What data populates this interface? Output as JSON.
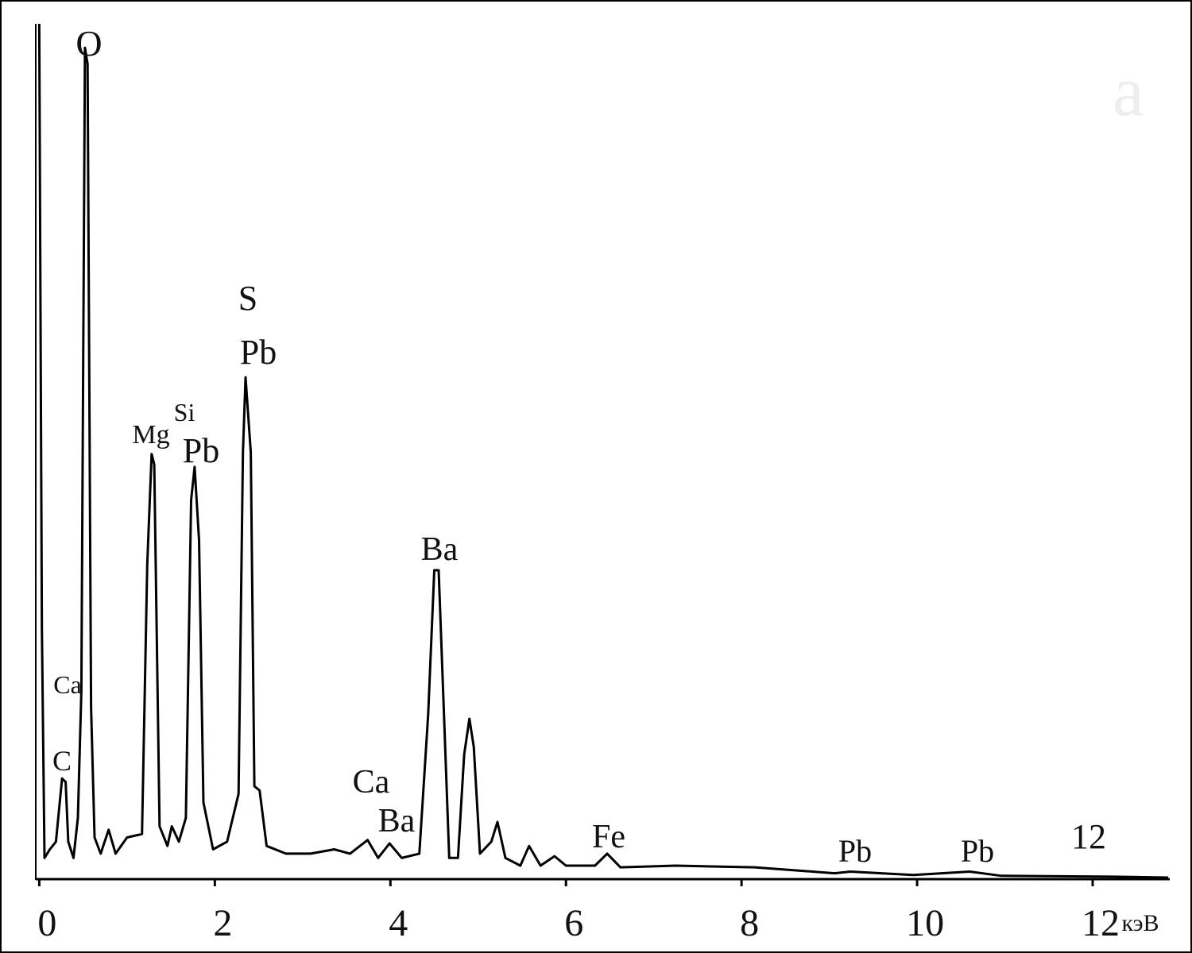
{
  "chart_data": {
    "type": "line",
    "x": [
      0,
      0.03,
      0.06,
      0.12,
      0.19,
      0.26,
      0.3,
      0.33,
      0.39,
      0.44,
      0.48,
      0.52,
      0.55,
      0.59,
      0.63,
      0.7,
      0.79,
      0.87,
      1.0,
      1.17,
      1.23,
      1.28,
      1.31,
      1.37,
      1.46,
      1.51,
      1.59,
      1.67,
      1.73,
      1.77,
      1.82,
      1.87,
      1.98,
      2.14,
      2.27,
      2.32,
      2.35,
      2.41,
      2.45,
      2.51,
      2.59,
      2.81,
      3.09,
      3.36,
      3.54,
      3.74,
      3.86,
      3.99,
      4.13,
      4.33,
      4.43,
      4.5,
      4.55,
      4.61,
      4.67,
      4.77,
      4.84,
      4.9,
      4.95,
      5.02,
      5.15,
      5.22,
      5.31,
      5.48,
      5.58,
      5.71,
      5.87,
      6.0,
      6.33,
      6.47,
      6.62,
      7.25,
      8.15,
      9.06,
      9.24,
      9.96,
      10.6,
      10.96,
      12.23,
      12.86
    ],
    "values": [
      100,
      29.3,
      2.3,
      3.3,
      4.2,
      11.6,
      11.2,
      4.2,
      2.3,
      7.0,
      21.9,
      97.2,
      95.3,
      20,
      4.7,
      2.8,
      5.6,
      2.8,
      4.7,
      5.1,
      36.7,
      49.6,
      48.4,
      6.0,
      3.7,
      6.0,
      4.2,
      7.0,
      44.2,
      48.1,
      39.5,
      8.8,
      3.3,
      4.2,
      9.8,
      49.8,
      58.6,
      49.8,
      10.7,
      10.2,
      3.7,
      2.8,
      2.8,
      3.3,
      2.8,
      4.4,
      2.3,
      4.0,
      2.3,
      2.8,
      19.1,
      36.0,
      36.0,
      19.1,
      2.3,
      2.3,
      14.4,
      18.6,
      15.3,
      2.8,
      4.2,
      6.5,
      2.3,
      1.4,
      3.7,
      1.4,
      2.5,
      1.4,
      1.4,
      2.8,
      1.2,
      1.4,
      1.2,
      0.5,
      0.7,
      0.3,
      0.7,
      0.2,
      0.1,
      0
    ],
    "color": "#000000",
    "xlim": [
      -0.04,
      12.86
    ],
    "ylim": [
      0,
      100
    ],
    "xticks": [
      0,
      2,
      4,
      6,
      8,
      10,
      12
    ],
    "xlabel": "кэВ",
    "annotations": [
      "O",
      "S",
      "Pb",
      "Si",
      "Mg",
      "Pb",
      "Ba",
      "Ca",
      "C",
      "Ca",
      "Ba",
      "Fe",
      "Pb",
      "Pb",
      "12",
      "a"
    ]
  }
}
